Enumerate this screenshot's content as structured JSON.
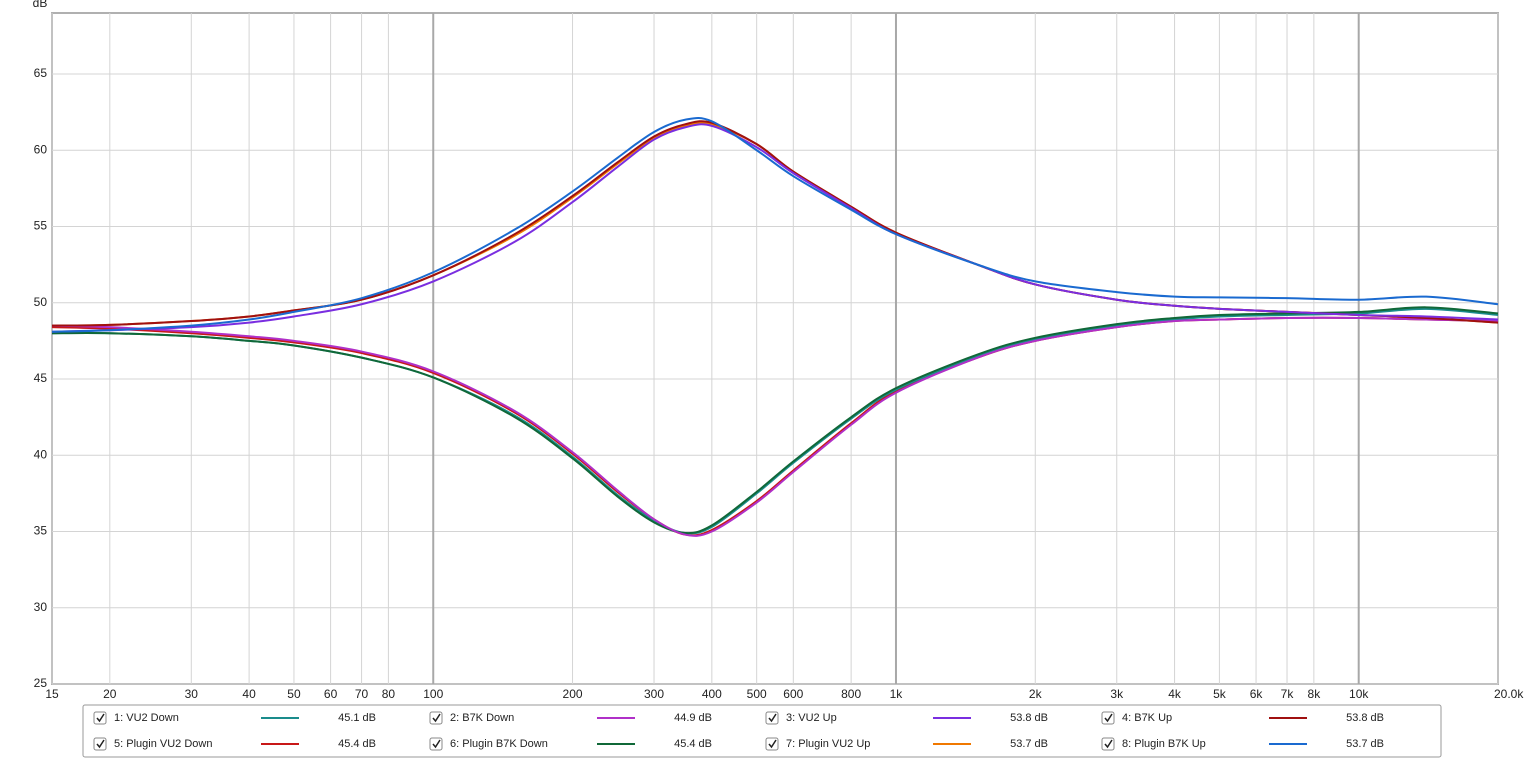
{
  "chart_data": {
    "type": "line",
    "y_label": "dB",
    "log_x": true,
    "grid": true,
    "xlim": [
      15,
      20000
    ],
    "ylim": [
      25,
      69
    ],
    "xticks": [
      15,
      20,
      30,
      40,
      50,
      60,
      70,
      80,
      100,
      200,
      300,
      400,
      500,
      600,
      800,
      {
        "value": 1000,
        "label": "1k"
      },
      {
        "value": 2000,
        "label": "2k"
      },
      {
        "value": 3000,
        "label": "3k"
      },
      {
        "value": 4000,
        "label": "4k"
      },
      {
        "value": 5000,
        "label": "5k"
      },
      {
        "value": 6000,
        "label": "6k"
      },
      {
        "value": 7000,
        "label": "7k"
      },
      {
        "value": 8000,
        "label": "8k"
      },
      {
        "value": 10000,
        "label": "10k"
      },
      {
        "value": 20000,
        "label": "20.0kHz"
      }
    ],
    "yticks": [
      25,
      30,
      35,
      40,
      45,
      50,
      55,
      60,
      65
    ],
    "x": [
      15,
      20,
      30,
      40,
      50,
      70,
      100,
      150,
      200,
      250,
      300,
      350,
      400,
      500,
      600,
      800,
      1000,
      1500,
      2000,
      3000,
      4000,
      5000,
      7000,
      10000,
      14000,
      20000
    ],
    "series": [
      {
        "name": "1: VU2 Down",
        "color": "#1a8c8c",
        "readout": {
          "value": 45.1,
          "label": "45.1 dB"
        },
        "values": [
          48.0,
          48.0,
          47.8,
          47.5,
          47.2,
          46.4,
          45.1,
          42.6,
          39.9,
          37.4,
          35.7,
          34.9,
          35.3,
          37.5,
          39.5,
          42.4,
          44.3,
          46.5,
          47.6,
          48.5,
          48.9,
          49.1,
          49.2,
          49.3,
          49.6,
          49.2
        ]
      },
      {
        "name": "2: B7K Down",
        "color": "#b030c8",
        "readout": {
          "value": 44.9,
          "label": "44.9 dB"
        },
        "values": [
          48.5,
          48.4,
          48.1,
          47.8,
          47.5,
          46.8,
          45.5,
          42.9,
          40.2,
          37.7,
          35.8,
          34.8,
          35.0,
          36.9,
          38.9,
          42.0,
          44.1,
          46.4,
          47.5,
          48.4,
          48.8,
          48.9,
          49.0,
          49.0,
          48.9,
          48.8
        ]
      },
      {
        "name": "3: VU2 Up",
        "color": "#7a2ee0",
        "readout": {
          "value": 53.8,
          "label": "53.8 dB"
        },
        "values": [
          48.1,
          48.2,
          48.4,
          48.7,
          49.1,
          49.9,
          51.4,
          54.0,
          56.6,
          58.9,
          60.7,
          61.5,
          61.6,
          60.2,
          58.5,
          56.2,
          54.5,
          52.5,
          51.2,
          50.2,
          49.8,
          49.6,
          49.4,
          49.2,
          49.1,
          48.9
        ]
      },
      {
        "name": "4: B7K Up",
        "color": "#a01010",
        "readout": {
          "value": 53.8,
          "label": "53.8 dB"
        },
        "values": [
          48.5,
          48.55,
          48.8,
          49.1,
          49.5,
          50.2,
          51.8,
          54.5,
          57.0,
          59.2,
          60.9,
          61.7,
          61.8,
          60.4,
          58.6,
          56.3,
          54.6,
          52.5,
          51.2,
          50.2,
          49.8,
          49.6,
          49.4,
          49.2,
          49.0,
          48.7
        ]
      },
      {
        "name": "5: Plugin VU2 Down",
        "color": "#c81818",
        "readout": {
          "value": 45.4,
          "label": "45.4 dB"
        },
        "values": [
          48.4,
          48.3,
          48.0,
          47.7,
          47.4,
          46.7,
          45.4,
          42.8,
          40.1,
          37.6,
          35.8,
          34.8,
          35.1,
          37.0,
          39.0,
          42.1,
          44.2,
          46.4,
          47.5,
          48.4,
          48.8,
          48.9,
          49.0,
          49.0,
          48.9,
          48.8
        ]
      },
      {
        "name": "6: Plugin B7K Down",
        "color": "#106838",
        "readout": {
          "value": 45.4,
          "label": "45.4 dB"
        },
        "values": [
          48.0,
          48.0,
          47.8,
          47.5,
          47.2,
          46.4,
          45.1,
          42.5,
          39.8,
          37.3,
          35.6,
          34.9,
          35.4,
          37.6,
          39.6,
          42.5,
          44.4,
          46.6,
          47.7,
          48.6,
          49.0,
          49.2,
          49.3,
          49.4,
          49.7,
          49.3
        ]
      },
      {
        "name": "7: Plugin VU2 Up",
        "color": "#f07800",
        "readout": {
          "value": 53.7,
          "label": "53.7 dB"
        },
        "values": [
          48.5,
          48.55,
          48.8,
          49.1,
          49.5,
          50.2,
          51.8,
          54.4,
          56.9,
          59.1,
          60.8,
          61.6,
          61.7,
          60.4,
          58.6,
          56.3,
          54.6,
          52.5,
          51.2,
          50.2,
          49.8,
          49.6,
          49.4,
          49.2,
          49.0,
          48.7
        ]
      },
      {
        "name": "8: Plugin B7K Up",
        "color": "#1a6ad0",
        "readout": {
          "value": 53.7,
          "label": "53.7 dB"
        },
        "values": [
          48.1,
          48.2,
          48.5,
          48.9,
          49.4,
          50.3,
          52.0,
          54.8,
          57.3,
          59.5,
          61.2,
          62.0,
          61.9,
          60.0,
          58.3,
          56.1,
          54.5,
          52.5,
          51.4,
          50.7,
          50.4,
          50.35,
          50.3,
          50.2,
          50.4,
          49.9
        ]
      }
    ]
  }
}
